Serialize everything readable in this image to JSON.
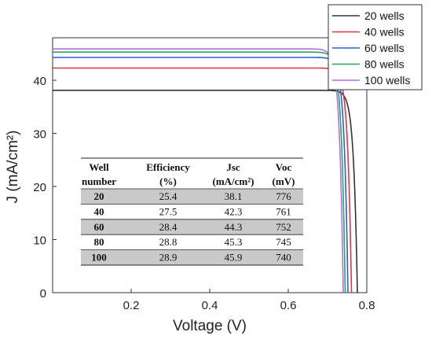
{
  "chart_data": {
    "type": "line",
    "xlabel": "Voltage (V)",
    "ylabel": "J (mA/cm²)",
    "xlim": [
      0.0,
      0.8
    ],
    "ylim": [
      0,
      48
    ],
    "x_ticks": [
      0.2,
      0.4,
      0.6,
      0.8
    ],
    "x_tick_labels": [
      "0.2",
      "0.4",
      "0.6",
      "0.8"
    ],
    "y_ticks": [
      0,
      10,
      20,
      30,
      40
    ],
    "y_tick_labels": [
      "0",
      "10",
      "20",
      "30",
      "40"
    ],
    "legend_position": "top-right",
    "series": [
      {
        "name": "20 wells",
        "color": "#333333",
        "jsc": 38.1,
        "voc": 0.776
      },
      {
        "name": "40 wells",
        "color": "#e8323c",
        "jsc": 42.3,
        "voc": 0.761
      },
      {
        "name": "60 wells",
        "color": "#2a5fd6",
        "jsc": 44.3,
        "voc": 0.752
      },
      {
        "name": "80 wells",
        "color": "#27a65a",
        "jsc": 45.3,
        "voc": 0.745
      },
      {
        "name": "100 wells",
        "color": "#b46de0",
        "jsc": 45.9,
        "voc": 0.74
      }
    ],
    "table": {
      "headers": [
        [
          "Well",
          "number"
        ],
        [
          "Efficiency",
          "(%)"
        ],
        [
          "Jsc",
          "(mA/cm²)"
        ],
        [
          "Voc",
          "(mV)"
        ]
      ],
      "rows": [
        [
          "20",
          "25.4",
          "38.1",
          "776"
        ],
        [
          "40",
          "27.5",
          "42.3",
          "761"
        ],
        [
          "60",
          "28.4",
          "44.3",
          "752"
        ],
        [
          "80",
          "28.8",
          "45.3",
          "745"
        ],
        [
          "100",
          "28.9",
          "45.9",
          "740"
        ]
      ]
    }
  }
}
